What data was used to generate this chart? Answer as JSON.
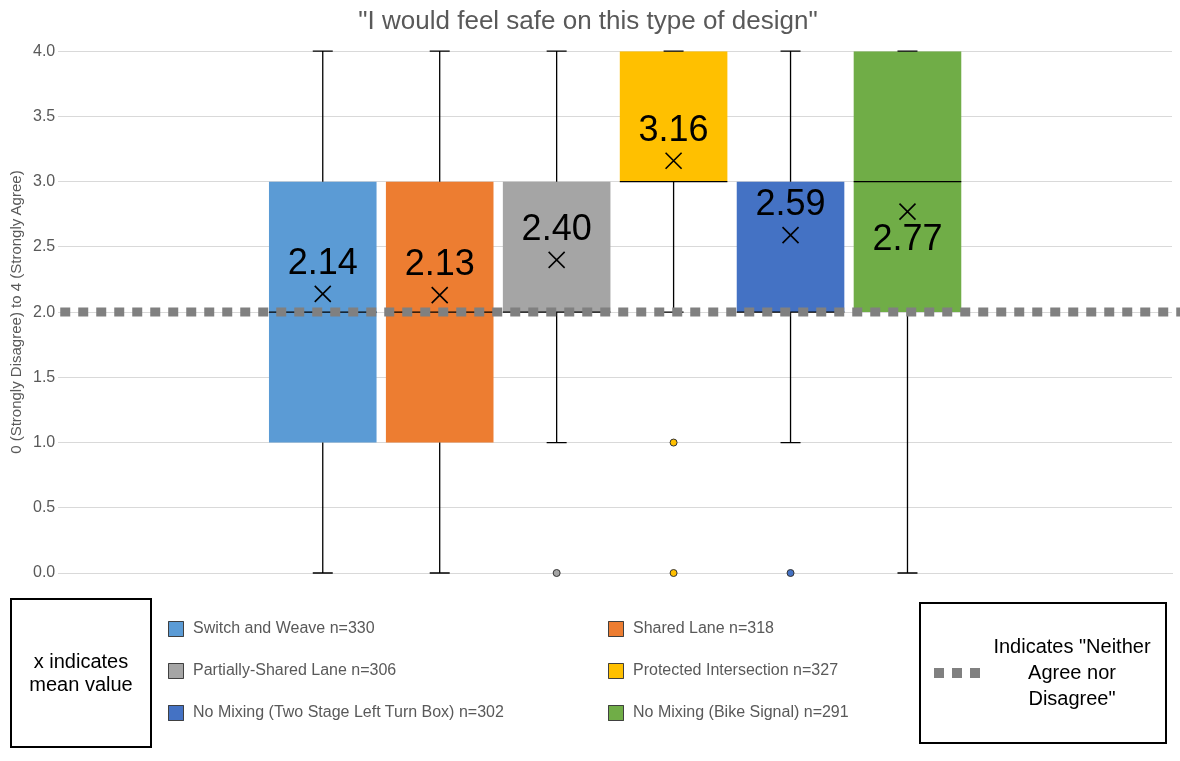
{
  "chart_data": {
    "type": "box",
    "title": "\"I would feel safe on this type of design\"",
    "ylabel": "0 (Strongly Disagree) to 4 (Strongly Agree)",
    "categories": [
      null
    ],
    "ylim": [
      0,
      4
    ],
    "yticks": [
      {
        "value": 0,
        "label": "0.0"
      },
      {
        "value": 0.5,
        "label": "0.5"
      },
      {
        "value": 1,
        "label": "1.0"
      },
      {
        "value": 1.5,
        "label": "1.5"
      },
      {
        "value": 2,
        "label": "2.0"
      },
      {
        "value": 2.5,
        "label": "2.5"
      },
      {
        "value": 3,
        "label": "3.0"
      },
      {
        "value": 3.5,
        "label": "3.5"
      },
      {
        "value": 4,
        "label": "4.0"
      }
    ],
    "grid": "y",
    "legend": "bottom",
    "marker": "circle",
    "series": [
      {
        "name": "Switch and Weave n=330",
        "color": "#5b9bd5",
        "boxes": [
          {
            "low": 0,
            "q1": 1,
            "median": 2,
            "q3": 3,
            "high": 4,
            "mean": 2.14
          }
        ],
        "value_labels": [
          "2.14"
        ]
      },
      {
        "name": "Shared Lane n=318",
        "color": "#ed7d31",
        "boxes": [
          {
            "low": 0,
            "q1": 1,
            "median": 2,
            "q3": 3,
            "high": 4,
            "mean": 2.13
          }
        ],
        "value_labels": [
          "2.13"
        ]
      },
      {
        "name": "Partially-Shared Lane n=306",
        "color": "#a5a5a5",
        "boxes": [
          {
            "low": 1,
            "q1": 2,
            "median": 2,
            "q3": 3,
            "high": 4,
            "mean": 2.4,
            "outliers": [
              0
            ]
          }
        ],
        "value_labels": [
          "2.40"
        ]
      },
      {
        "name": "Protected Intersection n=327",
        "color": "#ffc000",
        "boxes": [
          {
            "low": 2,
            "q1": 3,
            "median": 3,
            "q3": 4,
            "high": 4,
            "mean": 3.16,
            "outliers": [
              1,
              0
            ]
          }
        ],
        "value_labels": [
          "3.16"
        ]
      },
      {
        "name": "No Mixing (Two Stage Left Turn Box) n=302",
        "color": "#4472c4",
        "boxes": [
          {
            "low": 1,
            "q1": 2,
            "median": 2,
            "q3": 3,
            "high": 4,
            "mean": 2.59,
            "outliers": [
              0
            ]
          }
        ],
        "value_labels": [
          "2.59"
        ]
      },
      {
        "name": "No Mixing (Bike Signal) n=291",
        "color": "#70ad47",
        "boxes": [
          {
            "low": 0,
            "q1": 2,
            "median": 3,
            "q3": 4,
            "high": 4,
            "mean": 2.77
          }
        ],
        "value_labels": [
          "2.77"
        ]
      }
    ],
    "ref_lines": [
      {
        "axis": "y",
        "value": 2,
        "label": "Indicates \"Neither Agree nor Disagree\"",
        "color": "#808080",
        "line_style": "dotted"
      }
    ],
    "annotations": [
      "x indicates mean value"
    ]
  }
}
